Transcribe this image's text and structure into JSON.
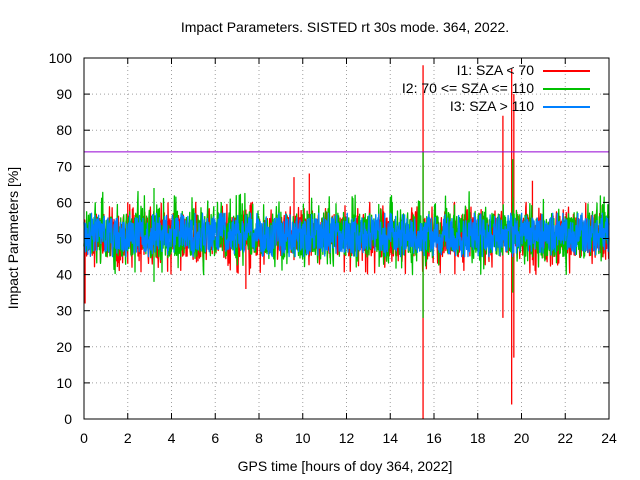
{
  "chart_data": {
    "type": "line",
    "title": "Impact Parameters. SISTED rt 30s mode. 364, 2022.",
    "xlabel": "GPS time [hours of doy 364, 2022]",
    "ylabel": "Impact Parameters [%]",
    "xlim": [
      0,
      24
    ],
    "ylim": [
      0,
      100
    ],
    "x_ticks": [
      "0",
      "2",
      "4",
      "6",
      "8",
      "10",
      "12",
      "14",
      "16",
      "18",
      "20",
      "22",
      "24"
    ],
    "y_ticks": [
      "0",
      "10",
      "20",
      "30",
      "40",
      "50",
      "60",
      "70",
      "80",
      "90",
      "100"
    ],
    "grid": true,
    "legend_position": "top-right",
    "threshold": {
      "value": 74,
      "color": "#9400d3"
    },
    "series": [
      {
        "name": "I1: SZA < 70",
        "color": "#ff0000",
        "band": [
          40,
          60
        ],
        "center": 51,
        "spikes": [
          {
            "x": 0.05,
            "low": 32,
            "high": 53
          },
          {
            "x": 2.0,
            "low": 43,
            "high": 60
          },
          {
            "x": 7.4,
            "low": 36,
            "high": 58
          },
          {
            "x": 9.6,
            "low": 44,
            "high": 67
          },
          {
            "x": 10.3,
            "low": 45,
            "high": 68
          },
          {
            "x": 15.5,
            "low": 0,
            "high": 98
          },
          {
            "x": 19.15,
            "low": 28,
            "high": 84
          },
          {
            "x": 19.55,
            "low": 4,
            "high": 97
          },
          {
            "x": 19.65,
            "low": 17,
            "high": 90
          },
          {
            "x": 20.5,
            "low": 44,
            "high": 66
          }
        ]
      },
      {
        "name": "I2: 70 <= SZA <= 110",
        "color": "#00c000",
        "band": [
          40,
          63
        ],
        "center": 51,
        "spikes": [
          {
            "x": 3.2,
            "low": 38,
            "high": 64
          },
          {
            "x": 15.5,
            "low": 28,
            "high": 74
          },
          {
            "x": 19.6,
            "low": 35,
            "high": 72
          }
        ]
      },
      {
        "name": "I3: SZA > 110",
        "color": "#0080ff",
        "band": [
          45,
          57
        ],
        "center": 51,
        "spikes": []
      }
    ]
  }
}
